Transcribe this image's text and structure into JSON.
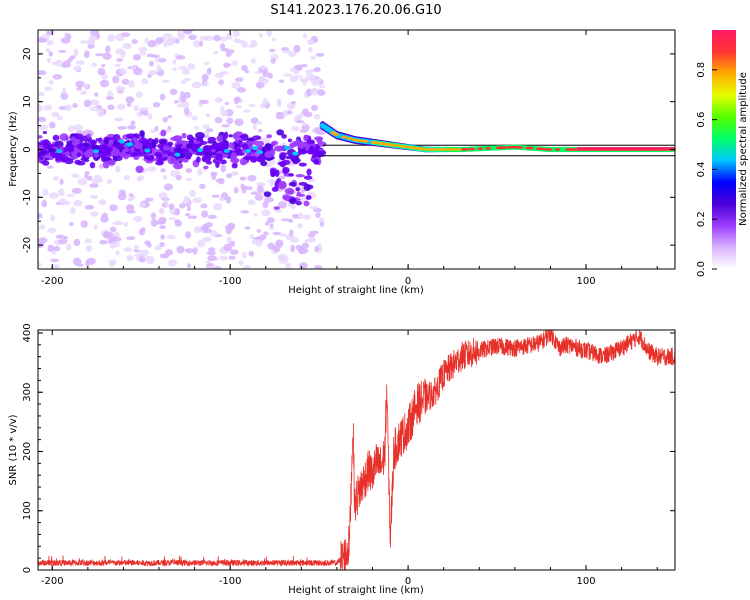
{
  "title": "S141.2023.176.20.06.G10",
  "colorbar": {
    "label": "Normalized spectral amplitude",
    "ticks": [
      "0.0",
      "0.2",
      "0.4",
      "0.6",
      "0.8"
    ],
    "tick_values": [
      0.0,
      0.2,
      0.4,
      0.6,
      0.8
    ],
    "range": [
      0,
      0.96
    ],
    "colormap": [
      "#ffffff",
      "#d8b4fe",
      "#9d3cff",
      "#4b00d9",
      "#0000ff",
      "#00c8ff",
      "#00ff66",
      "#55ff00",
      "#e6ff00",
      "#ffaa00",
      "#ff3333",
      "#ff1a66"
    ]
  },
  "chart_data": [
    {
      "type": "heatmap",
      "panel": "spectrogram",
      "title": "S141.2023.176.20.06.G10",
      "xlabel": "Height of straight line (km)",
      "ylabel": "Frequency (Hz)",
      "xlim": [
        -208,
        150
      ],
      "ylim": [
        -25,
        25
      ],
      "xticks": [
        -200,
        -100,
        0,
        100
      ],
      "xtick_labels": [
        "-200",
        "-100",
        "0",
        "100"
      ],
      "yticks": [
        -20,
        -10,
        0,
        10,
        20
      ],
      "ytick_labels": [
        "-20",
        "-10",
        "0",
        "10",
        "20"
      ],
      "description_values": {
        "noise_region_x": [
          -208,
          -48
        ],
        "line_region_x": [
          -48,
          150
        ],
        "line_center_hz": [
          [
            -48,
            5
          ],
          [
            -40,
            3
          ],
          [
            -30,
            2
          ],
          [
            -20,
            1.5
          ],
          [
            -10,
            1
          ],
          [
            0,
            0.5
          ],
          [
            10,
            0
          ],
          [
            30,
            0
          ],
          [
            60,
            0.5
          ],
          [
            80,
            0
          ],
          [
            150,
            0
          ]
        ],
        "peak_amplitude": 0.96
      }
    },
    {
      "type": "line",
      "panel": "snr",
      "xlabel": "Height of straight line (km)",
      "ylabel": "SNR (10 * v/v)",
      "xlim": [
        -208,
        150
      ],
      "ylim": [
        0,
        405
      ],
      "xticks": [
        -200,
        -100,
        0,
        100
      ],
      "xtick_labels": [
        "-200",
        "-100",
        "0",
        "100"
      ],
      "yticks": [
        0,
        100,
        200,
        300,
        400
      ],
      "ytick_labels": [
        "0",
        "100",
        "200",
        "300",
        "400"
      ],
      "color": "#e8302a",
      "series": [
        {
          "x": [
            -208,
            -150,
            -100,
            -60,
            -40,
            -35,
            -33,
            -32,
            -31,
            -30,
            -28,
            -25,
            -22,
            -20,
            -18,
            -15,
            -13,
            -12,
            -10,
            -8,
            -5,
            0,
            5,
            10,
            15,
            20,
            25,
            30,
            40,
            50,
            60,
            70,
            75,
            80,
            85,
            90,
            100,
            110,
            120,
            130,
            135,
            140,
            150
          ],
          "y": [
            12,
            12,
            12,
            12,
            12,
            25,
            45,
            140,
            245,
            110,
            130,
            150,
            170,
            160,
            180,
            175,
            200,
            310,
            50,
            200,
            220,
            240,
            280,
            290,
            300,
            330,
            345,
            360,
            370,
            378,
            375,
            380,
            385,
            400,
            375,
            380,
            370,
            360,
            375,
            395,
            370,
            360,
            360
          ]
        }
      ]
    }
  ]
}
